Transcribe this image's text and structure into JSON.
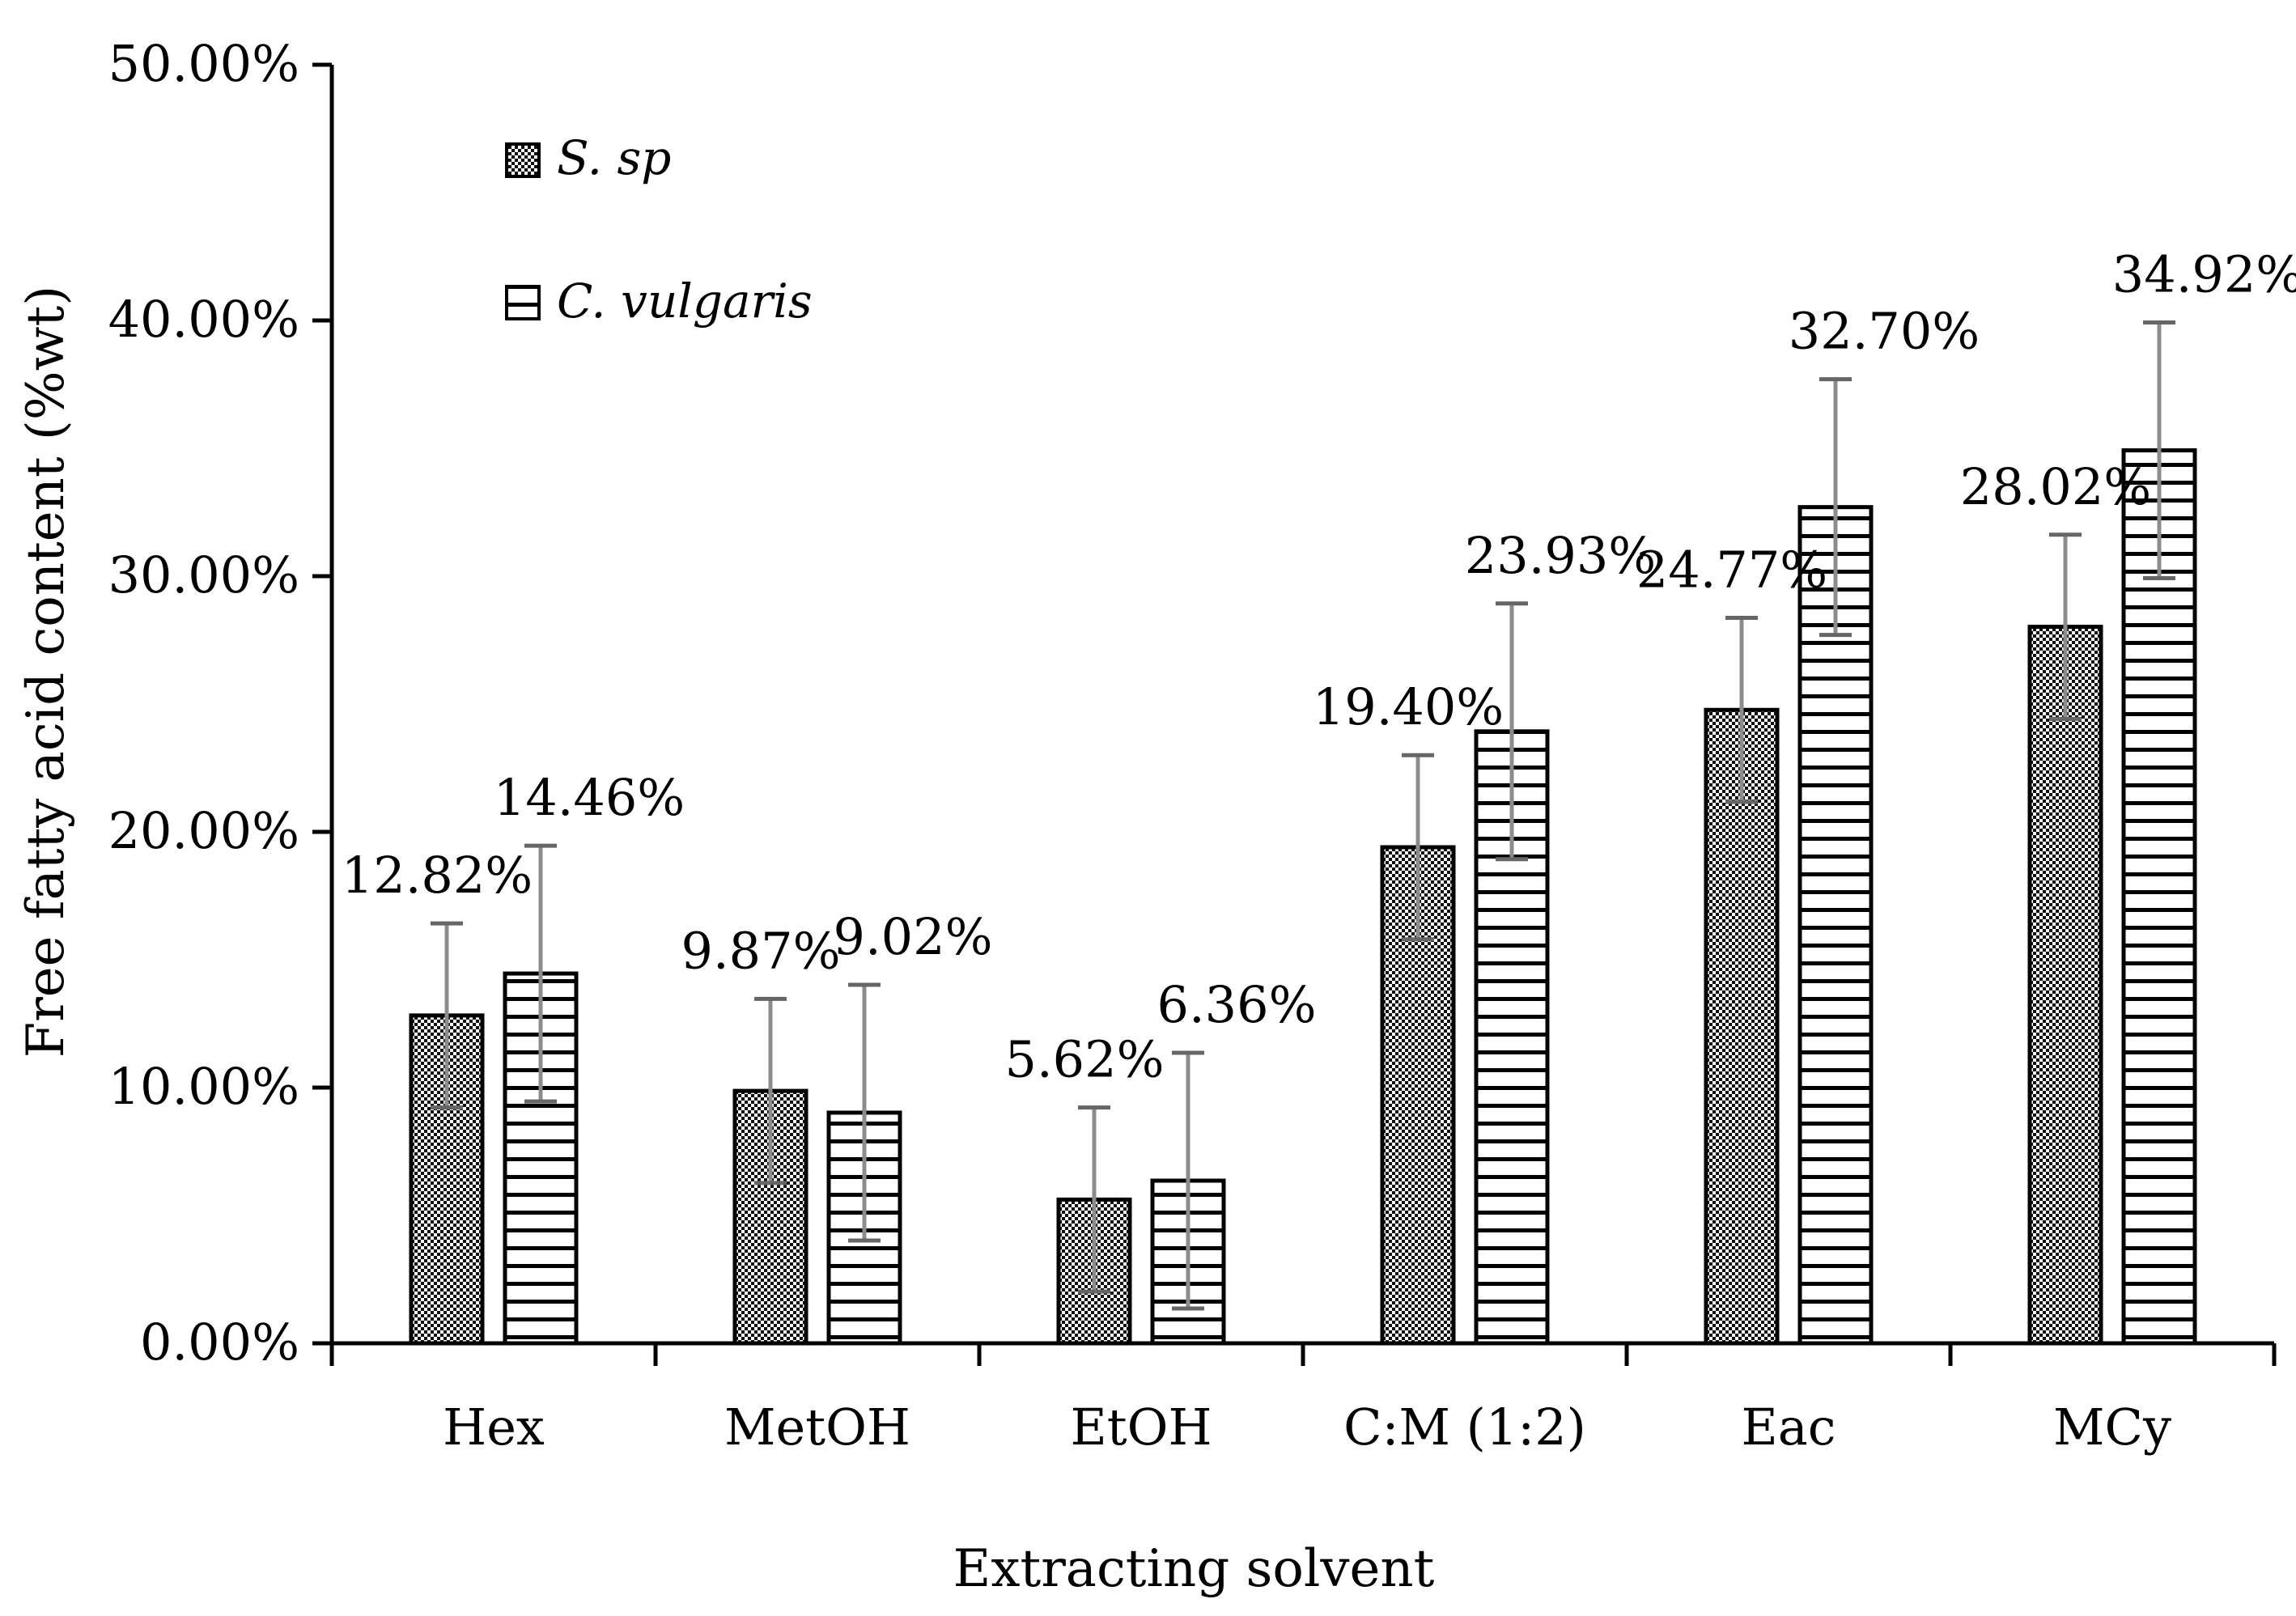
{
  "chart_data": {
    "type": "bar",
    "title": "",
    "xlabel": "Extracting solvent",
    "ylabel": "Free fatty acid content (%wt)",
    "ylim": [
      0,
      50
    ],
    "yticks": [
      "0.00%",
      "10.00%",
      "20.00%",
      "30.00%",
      "40.00%",
      "50.00%"
    ],
    "categories": [
      "Hex",
      "MetOH",
      "EtOH",
      "C:M (1:2)",
      "Eac",
      "MCy"
    ],
    "legend_position": "top-left",
    "series": [
      {
        "name": "S. sp",
        "pattern": "dots",
        "values": [
          12.82,
          9.87,
          5.62,
          19.4,
          24.77,
          28.02
        ],
        "labels": [
          "12.82%",
          "9.87%",
          "5.62%",
          "19.40%",
          "24.77%",
          "28.02%"
        ],
        "error": [
          3.6,
          3.6,
          3.6,
          3.6,
          3.6,
          3.6
        ]
      },
      {
        "name": "C. vulgaris",
        "pattern": "hstripes",
        "values": [
          14.46,
          9.02,
          6.36,
          23.93,
          32.7,
          34.92
        ],
        "labels": [
          "14.46%",
          "9.02%",
          "6.36%",
          "23.93%",
          "32.70%",
          "34.92%"
        ],
        "error": [
          5.0,
          5.0,
          5.0,
          5.0,
          5.0,
          5.0
        ]
      }
    ]
  }
}
